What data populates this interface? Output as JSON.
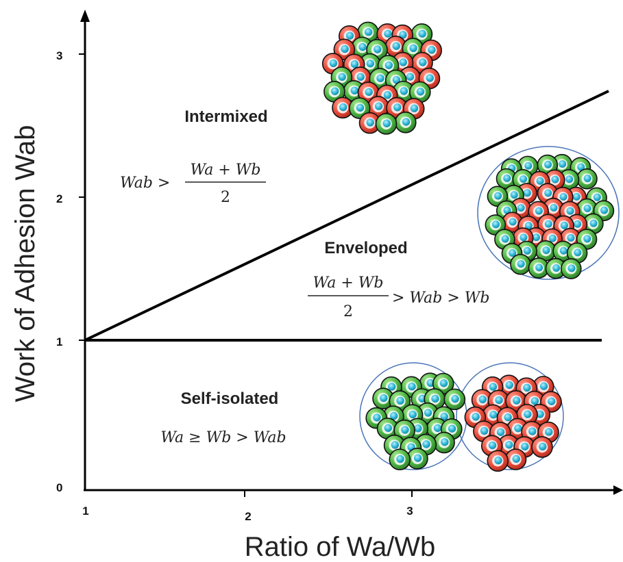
{
  "axes": {
    "x_title": "Ratio of Wa/Wb",
    "y_title": "Work of Adhesion Wab",
    "x_ticks": [
      "1",
      "2",
      "3"
    ],
    "y_ticks": [
      "0",
      "1",
      "2",
      "3"
    ]
  },
  "regions": {
    "intermixed": {
      "label": "Intermixed",
      "formula_lhs": "Wab >",
      "formula_num": "Wa + Wb",
      "formula_den": "2"
    },
    "enveloped": {
      "label": "Enveloped",
      "formula_num": "Wa + Wb",
      "formula_den": "2",
      "formula_rhs": "> Wab > Wb"
    },
    "self_isolated": {
      "label": "Self-isolated",
      "formula": "Wa ≥ Wb > Wab"
    }
  },
  "colors": {
    "cell_red": "#e8503f",
    "cell_green": "#52b848",
    "nucleus": "#2bb5d6",
    "boundary": "#4a76b8",
    "line": "#000000"
  }
}
